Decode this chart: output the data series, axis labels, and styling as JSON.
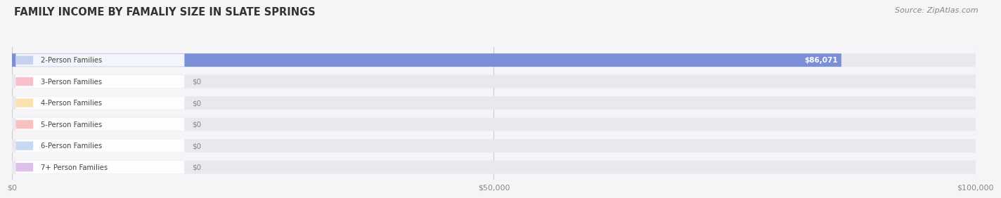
{
  "title": "FAMILY INCOME BY FAMALIY SIZE IN SLATE SPRINGS",
  "source": "Source: ZipAtlas.com",
  "categories": [
    "2-Person Families",
    "3-Person Families",
    "4-Person Families",
    "5-Person Families",
    "6-Person Families",
    "7+ Person Families"
  ],
  "values": [
    86071,
    0,
    0,
    0,
    0,
    0
  ],
  "bar_colors": [
    "#7b8ed8",
    "#f08090",
    "#f5c080",
    "#f0a0a0",
    "#a0b8e0",
    "#c0a0d0"
  ],
  "label_bg_colors": [
    "#c8d0f0",
    "#f8c0cc",
    "#fce0b0",
    "#f8c0c0",
    "#c8d8f0",
    "#dcc0e8"
  ],
  "bar_value_labels": [
    "$86,071",
    "$0",
    "$0",
    "$0",
    "$0",
    "$0"
  ],
  "xlim": [
    0,
    100000
  ],
  "xticks": [
    0,
    50000,
    100000
  ],
  "xtick_labels": [
    "$0",
    "$50,000",
    "$100,000"
  ],
  "bg_color": "#f5f5f8",
  "bar_bg_color": "#e8e8ee",
  "title_color": "#333333",
  "source_color": "#888888"
}
